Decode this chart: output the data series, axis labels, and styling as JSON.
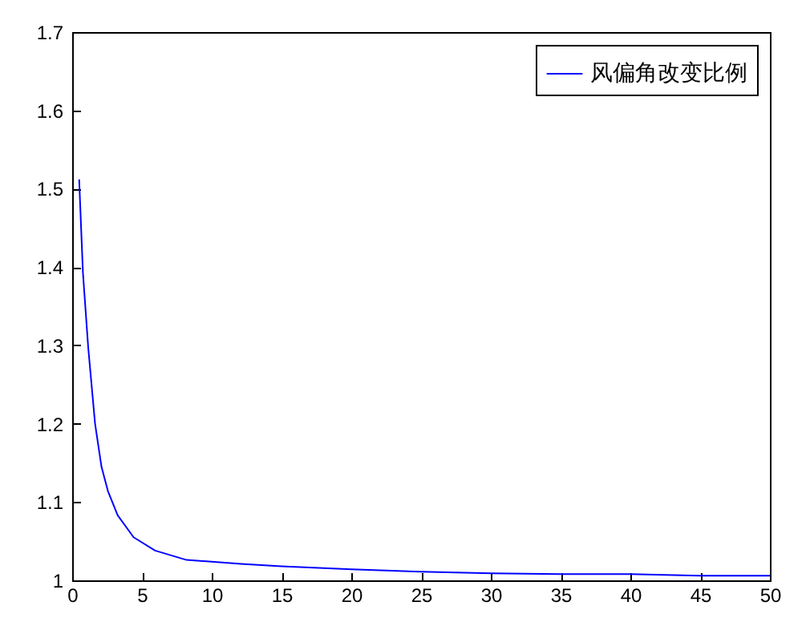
{
  "chart_data": {
    "type": "line",
    "x": [
      0.5,
      0.77,
      1.15,
      1.64,
      2.1,
      2.56,
      3.26,
      4.4,
      5.94,
      8.2,
      9.8,
      12.1,
      15,
      20,
      25,
      30,
      35,
      40,
      45,
      50
    ],
    "series": [
      {
        "name": "风偏角改变比例",
        "color": "#0000ff",
        "values": [
          1.512,
          1.393,
          1.297,
          1.2,
          1.145,
          1.114,
          1.083,
          1.055,
          1.038,
          1.026,
          1.024,
          1.021,
          1.018,
          1.014,
          1.011,
          1.009,
          1.008,
          1.008,
          1.006,
          1.006
        ]
      }
    ],
    "xlim": [
      0,
      50
    ],
    "xticks": [
      0,
      5,
      10,
      15,
      20,
      25,
      30,
      35,
      40,
      45,
      50
    ],
    "ylim": [
      1,
      1.7
    ],
    "yticks": [
      1,
      1.1,
      1.2,
      1.3,
      1.4,
      1.5,
      1.6,
      1.7
    ],
    "legend": "top right",
    "grid": false,
    "marker": "none",
    "line_style": "solid"
  }
}
